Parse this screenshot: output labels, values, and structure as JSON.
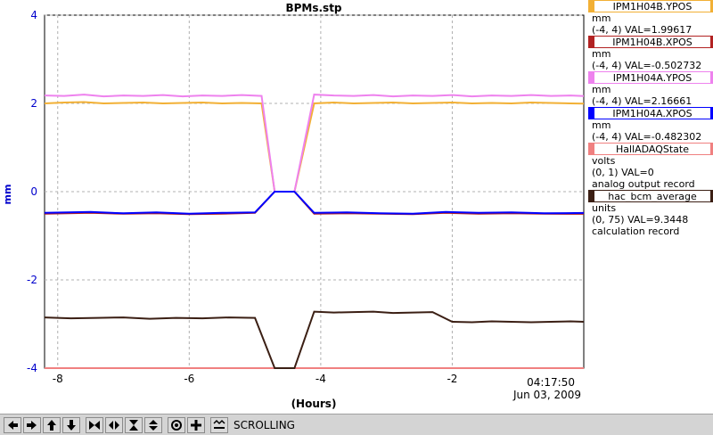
{
  "chart_data": {
    "type": "line",
    "title": "BPMs.stp",
    "xlabel": "(Hours)",
    "ylabel": "mm",
    "xlim": [
      -8.2,
      0
    ],
    "ylim": [
      -4,
      4
    ],
    "x_ticks": [
      -8,
      -6,
      -4,
      -2
    ],
    "y_ticks": [
      -4,
      -2,
      0,
      2,
      4
    ],
    "x_tick_labels": [
      "-8",
      "-6",
      "-4",
      "-2"
    ],
    "y_tick_labels": [
      "-4",
      "-2",
      "0",
      "2",
      "4"
    ],
    "end_time": "04:17:50",
    "end_date": "Jun 03, 2009",
    "grid": true,
    "legend_position": "right",
    "series": [
      {
        "name": "IPM1H04B.YPOS",
        "color": "#f2b035",
        "units": "mm",
        "range": "(-4, 4)",
        "value_text": "VAL=1.99617",
        "record": "",
        "x": [
          -8.2,
          -7.9,
          -7.6,
          -7.3,
          -7.0,
          -6.7,
          -6.4,
          -6.1,
          -5.8,
          -5.5,
          -5.2,
          -4.9,
          -4.7,
          -4.4,
          -4.1,
          -3.8,
          -3.5,
          -3.2,
          -2.9,
          -2.6,
          -2.3,
          -2.0,
          -1.7,
          -1.4,
          -1.1,
          -0.8,
          -0.5,
          -0.2,
          0.0
        ],
        "y": [
          2.0,
          2.02,
          2.03,
          2.0,
          2.01,
          2.02,
          2.0,
          2.01,
          2.02,
          2.0,
          2.01,
          2.0,
          0.0,
          0.0,
          2.0,
          2.02,
          2.0,
          2.01,
          2.02,
          2.0,
          2.01,
          2.02,
          2.0,
          2.01,
          2.0,
          2.02,
          2.01,
          2.0,
          1.99617
        ]
      },
      {
        "name": "IPM1H04B.XPOS",
        "color": "#b22222",
        "units": "mm",
        "range": "(-4, 4)",
        "value_text": "VAL=-0.502732",
        "record": "",
        "x": [
          -8.2,
          -7.5,
          -7.0,
          -6.5,
          -6.0,
          -5.5,
          -5.0,
          -4.7,
          -4.4,
          -4.1,
          -3.6,
          -3.1,
          -2.6,
          -2.1,
          -1.6,
          -1.1,
          -0.6,
          0.0
        ],
        "y": [
          -0.5,
          -0.48,
          -0.5,
          -0.49,
          -0.51,
          -0.5,
          -0.48,
          0.0,
          0.0,
          -0.5,
          -0.49,
          -0.5,
          -0.51,
          -0.48,
          -0.5,
          -0.49,
          -0.5,
          -0.502732
        ]
      },
      {
        "name": "IPM1H04A.YPOS",
        "color": "#ee82ee",
        "units": "mm",
        "range": "(-4, 4)",
        "value_text": "VAL=2.16661",
        "record": "",
        "x": [
          -8.2,
          -7.9,
          -7.6,
          -7.3,
          -7.0,
          -6.7,
          -6.4,
          -6.1,
          -5.8,
          -5.5,
          -5.2,
          -4.9,
          -4.7,
          -4.4,
          -4.1,
          -3.8,
          -3.5,
          -3.2,
          -2.9,
          -2.6,
          -2.3,
          -2.0,
          -1.7,
          -1.4,
          -1.1,
          -0.8,
          -0.5,
          -0.2,
          0.0
        ],
        "y": [
          2.18,
          2.17,
          2.2,
          2.16,
          2.18,
          2.17,
          2.19,
          2.16,
          2.18,
          2.17,
          2.19,
          2.17,
          0.0,
          0.0,
          2.2,
          2.18,
          2.17,
          2.19,
          2.16,
          2.18,
          2.17,
          2.19,
          2.16,
          2.18,
          2.17,
          2.19,
          2.17,
          2.18,
          2.16661
        ]
      },
      {
        "name": "IPM1H04A.XPOS",
        "color": "#0000ff",
        "units": "mm",
        "range": "(-4, 4)",
        "value_text": "VAL=-0.482302",
        "record": "",
        "x": [
          -8.2,
          -7.5,
          -7.0,
          -6.5,
          -6.0,
          -5.5,
          -5.0,
          -4.7,
          -4.4,
          -4.1,
          -3.6,
          -3.1,
          -2.6,
          -2.1,
          -1.6,
          -1.1,
          -0.6,
          0.0
        ],
        "y": [
          -0.48,
          -0.46,
          -0.49,
          -0.47,
          -0.5,
          -0.48,
          -0.47,
          0.0,
          0.0,
          -0.48,
          -0.47,
          -0.49,
          -0.5,
          -0.46,
          -0.48,
          -0.47,
          -0.49,
          -0.482302
        ]
      },
      {
        "name": "HallADAQState",
        "color": "#f08080",
        "units": "volts",
        "range": "(0, 1)",
        "value_text": "VAL=0",
        "record": "analog output record",
        "x": [
          -8.2,
          0.0
        ],
        "y": [
          -4.0,
          -4.0
        ]
      },
      {
        "name": "hac_bcm_average",
        "color": "#3b1f14",
        "units": "units",
        "range": "(0, 75)",
        "value_text": "VAL=9.3448",
        "record": "calculation record",
        "x": [
          -8.2,
          -7.8,
          -7.4,
          -7.0,
          -6.6,
          -6.2,
          -5.8,
          -5.4,
          -5.0,
          -4.7,
          -4.4,
          -4.1,
          -3.8,
          -3.5,
          -3.2,
          -2.9,
          -2.6,
          -2.3,
          -2.0,
          -1.7,
          -1.4,
          -1.1,
          -0.8,
          -0.5,
          -0.2,
          0.0
        ],
        "y": [
          -2.85,
          -2.87,
          -2.86,
          -2.85,
          -2.88,
          -2.86,
          -2.87,
          -2.85,
          -2.86,
          -4.0,
          -4.0,
          -2.72,
          -2.74,
          -2.73,
          -2.72,
          -2.75,
          -2.74,
          -2.73,
          -2.95,
          -2.96,
          -2.94,
          -2.95,
          -2.96,
          -2.95,
          -2.94,
          -2.95
        ]
      }
    ]
  },
  "toolbar": {
    "status": "SCROLLING",
    "buttons": [
      {
        "name": "left-arrow-icon"
      },
      {
        "name": "right-arrow-icon"
      },
      {
        "name": "up-arrow-icon"
      },
      {
        "name": "down-arrow-icon"
      },
      {
        "name": "zoom-x-in-icon"
      },
      {
        "name": "zoom-x-out-icon"
      },
      {
        "name": "zoom-y-in-icon"
      },
      {
        "name": "zoom-y-out-icon"
      },
      {
        "name": "autoscale-icon"
      },
      {
        "name": "crosshair-icon"
      },
      {
        "name": "scroll-mode-icon"
      }
    ]
  }
}
